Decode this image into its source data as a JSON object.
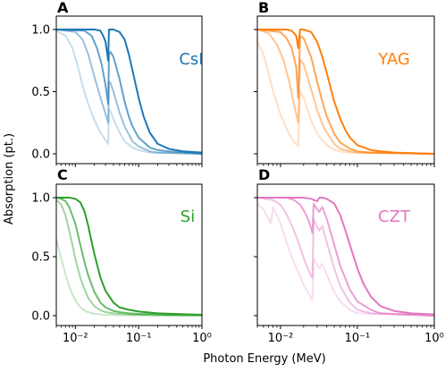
{
  "figure": {
    "ylabel": "Absorption (pt.)",
    "xlabel": "Photon Energy (MeV)"
  },
  "chart_data": [
    {
      "type": "line",
      "panel_letter": "A",
      "material": "CsI",
      "color": "#1f77b4",
      "x_scale": "log",
      "xlim": [
        0.005,
        1.0
      ],
      "ylim": [
        0.0,
        1.0
      ],
      "x_ticks": [
        "10⁻²",
        "10⁻¹",
        "10⁰"
      ],
      "y_ticks": [
        "0.0",
        "0.5",
        "1.0"
      ],
      "grid": false,
      "series": [
        {
          "opacity": 1.0,
          "x": [
            0.005,
            0.02,
            0.025,
            0.028,
            0.03,
            0.033,
            0.034,
            0.036,
            0.04,
            0.05,
            0.06,
            0.07,
            0.08,
            0.1,
            0.12,
            0.15,
            0.2,
            0.3,
            0.5,
            1.0
          ],
          "y": [
            1.0,
            1.0,
            0.99,
            0.94,
            0.9,
            0.75,
            1.0,
            1.0,
            1.0,
            0.98,
            0.92,
            0.8,
            0.67,
            0.45,
            0.3,
            0.17,
            0.08,
            0.04,
            0.02,
            0.01
          ]
        },
        {
          "opacity": 0.7,
          "x": [
            0.005,
            0.014,
            0.018,
            0.022,
            0.026,
            0.03,
            0.033,
            0.034,
            0.036,
            0.04,
            0.05,
            0.06,
            0.07,
            0.08,
            0.1,
            0.15,
            0.2,
            0.3,
            1.0
          ],
          "y": [
            1.0,
            0.99,
            0.95,
            0.85,
            0.72,
            0.55,
            0.4,
            0.8,
            0.82,
            0.78,
            0.6,
            0.42,
            0.3,
            0.22,
            0.13,
            0.05,
            0.03,
            0.02,
            0.0
          ]
        },
        {
          "opacity": 0.45,
          "x": [
            0.005,
            0.01,
            0.013,
            0.016,
            0.02,
            0.025,
            0.03,
            0.033,
            0.034,
            0.036,
            0.04,
            0.05,
            0.06,
            0.08,
            0.1,
            0.15,
            0.2,
            1.0
          ],
          "y": [
            1.0,
            0.98,
            0.92,
            0.8,
            0.62,
            0.45,
            0.32,
            0.25,
            0.58,
            0.57,
            0.5,
            0.33,
            0.22,
            0.1,
            0.06,
            0.02,
            0.01,
            0.0
          ]
        },
        {
          "opacity": 0.25,
          "x": [
            0.005,
            0.007,
            0.009,
            0.011,
            0.013,
            0.016,
            0.02,
            0.025,
            0.03,
            0.033,
            0.034,
            0.036,
            0.04,
            0.05,
            0.06,
            0.08,
            0.1,
            0.15,
            1.0
          ],
          "y": [
            0.99,
            0.95,
            0.85,
            0.7,
            0.55,
            0.4,
            0.27,
            0.17,
            0.11,
            0.08,
            0.36,
            0.34,
            0.28,
            0.17,
            0.1,
            0.05,
            0.03,
            0.01,
            0.0
          ]
        }
      ]
    },
    {
      "type": "line",
      "panel_letter": "B",
      "material": "YAG",
      "color": "#ff7f0e",
      "x_scale": "log",
      "xlim": [
        0.005,
        1.0
      ],
      "ylim": [
        0.0,
        1.0
      ],
      "x_ticks": [
        "10⁻²",
        "10⁻¹",
        "10⁰"
      ],
      "y_ticks": [
        "0.0",
        "0.5",
        "1.0"
      ],
      "grid": false,
      "series": [
        {
          "opacity": 1.0,
          "x": [
            0.005,
            0.012,
            0.014,
            0.016,
            0.017,
            0.018,
            0.02,
            0.025,
            0.03,
            0.035,
            0.04,
            0.05,
            0.06,
            0.07,
            0.08,
            0.1,
            0.15,
            0.2,
            0.3,
            1.0
          ],
          "y": [
            1.0,
            1.0,
            0.99,
            0.95,
            0.85,
            1.0,
            1.0,
            0.98,
            0.9,
            0.78,
            0.65,
            0.42,
            0.28,
            0.19,
            0.13,
            0.07,
            0.03,
            0.02,
            0.01,
            0.0
          ]
        },
        {
          "opacity": 0.7,
          "x": [
            0.005,
            0.01,
            0.012,
            0.014,
            0.016,
            0.017,
            0.018,
            0.02,
            0.025,
            0.03,
            0.035,
            0.04,
            0.05,
            0.06,
            0.08,
            0.1,
            0.15,
            1.0
          ],
          "y": [
            1.0,
            0.98,
            0.93,
            0.85,
            0.7,
            0.45,
            0.95,
            0.93,
            0.78,
            0.58,
            0.42,
            0.3,
            0.16,
            0.09,
            0.04,
            0.02,
            0.01,
            0.0
          ]
        },
        {
          "opacity": 0.45,
          "x": [
            0.005,
            0.007,
            0.009,
            0.011,
            0.013,
            0.015,
            0.017,
            0.018,
            0.02,
            0.025,
            0.03,
            0.035,
            0.04,
            0.05,
            0.06,
            0.08,
            0.1,
            1.0
          ],
          "y": [
            1.0,
            0.97,
            0.88,
            0.75,
            0.58,
            0.4,
            0.25,
            0.76,
            0.72,
            0.52,
            0.35,
            0.24,
            0.17,
            0.08,
            0.04,
            0.02,
            0.01,
            0.0
          ]
        },
        {
          "opacity": 0.25,
          "x": [
            0.005,
            0.006,
            0.007,
            0.008,
            0.01,
            0.012,
            0.014,
            0.017,
            0.018,
            0.02,
            0.025,
            0.03,
            0.04,
            0.05,
            0.06,
            0.08,
            1.0
          ],
          "y": [
            0.9,
            0.8,
            0.65,
            0.5,
            0.32,
            0.2,
            0.12,
            0.06,
            0.5,
            0.45,
            0.27,
            0.16,
            0.07,
            0.03,
            0.02,
            0.01,
            0.0
          ]
        }
      ]
    },
    {
      "type": "line",
      "panel_letter": "C",
      "material": "Si",
      "color": "#2ca02c",
      "x_scale": "log",
      "xlim": [
        0.005,
        1.0
      ],
      "ylim": [
        0.0,
        1.0
      ],
      "x_ticks": [
        "10⁻²",
        "10⁻¹",
        "10⁰"
      ],
      "y_ticks": [
        "0.0",
        "0.5",
        "1.0"
      ],
      "grid": false,
      "series": [
        {
          "opacity": 1.0,
          "x": [
            0.005,
            0.008,
            0.01,
            0.012,
            0.014,
            0.016,
            0.018,
            0.02,
            0.025,
            0.03,
            0.04,
            0.05,
            0.07,
            0.1,
            0.2,
            0.5,
            1.0
          ],
          "y": [
            1.0,
            1.0,
            0.99,
            0.96,
            0.88,
            0.76,
            0.63,
            0.52,
            0.32,
            0.21,
            0.11,
            0.07,
            0.05,
            0.035,
            0.02,
            0.012,
            0.008
          ]
        },
        {
          "opacity": 0.7,
          "x": [
            0.005,
            0.006,
            0.007,
            0.008,
            0.01,
            0.012,
            0.014,
            0.016,
            0.02,
            0.025,
            0.03,
            0.04,
            0.05,
            0.07,
            0.1,
            0.3,
            1.0
          ],
          "y": [
            1.0,
            0.99,
            0.97,
            0.92,
            0.78,
            0.6,
            0.45,
            0.34,
            0.2,
            0.11,
            0.07,
            0.04,
            0.03,
            0.02,
            0.015,
            0.008,
            0.005
          ]
        },
        {
          "opacity": 0.45,
          "x": [
            0.005,
            0.006,
            0.007,
            0.008,
            0.009,
            0.01,
            0.012,
            0.014,
            0.016,
            0.02,
            0.025,
            0.03,
            0.04,
            0.06,
            0.1,
            0.3,
            1.0
          ],
          "y": [
            0.98,
            0.94,
            0.85,
            0.72,
            0.6,
            0.48,
            0.32,
            0.22,
            0.15,
            0.08,
            0.045,
            0.03,
            0.02,
            0.012,
            0.008,
            0.004,
            0.003
          ]
        },
        {
          "opacity": 0.25,
          "x": [
            0.005,
            0.006,
            0.007,
            0.008,
            0.009,
            0.01,
            0.012,
            0.015,
            0.02,
            0.025,
            0.03,
            0.04,
            0.06,
            0.1,
            0.3,
            1.0
          ],
          "y": [
            0.65,
            0.48,
            0.35,
            0.25,
            0.18,
            0.13,
            0.07,
            0.035,
            0.015,
            0.01,
            0.007,
            0.005,
            0.003,
            0.002,
            0.001,
            0.001
          ]
        }
      ]
    },
    {
      "type": "line",
      "panel_letter": "D",
      "material": "CZT",
      "color": "#e377c2",
      "x_scale": "log",
      "xlim": [
        0.005,
        1.0
      ],
      "ylim": [
        0.0,
        1.0
      ],
      "x_ticks": [
        "10⁻²",
        "10⁻¹",
        "10⁰"
      ],
      "y_ticks": [
        "0.0",
        "0.5",
        "1.0"
      ],
      "grid": false,
      "series": [
        {
          "opacity": 1.0,
          "x": [
            0.005,
            0.02,
            0.025,
            0.027,
            0.03,
            0.032,
            0.035,
            0.04,
            0.05,
            0.06,
            0.07,
            0.08,
            0.1,
            0.12,
            0.15,
            0.2,
            0.3,
            0.5,
            1.0
          ],
          "y": [
            1.0,
            1.0,
            0.99,
            0.98,
            0.97,
            1.0,
            1.0,
            0.99,
            0.95,
            0.85,
            0.72,
            0.6,
            0.4,
            0.27,
            0.16,
            0.08,
            0.04,
            0.02,
            0.01
          ]
        },
        {
          "opacity": 0.7,
          "x": [
            0.005,
            0.012,
            0.015,
            0.018,
            0.021,
            0.024,
            0.026,
            0.027,
            0.03,
            0.032,
            0.035,
            0.04,
            0.05,
            0.06,
            0.08,
            0.1,
            0.15,
            0.2,
            1.0
          ],
          "y": [
            1.0,
            1.0,
            0.98,
            0.94,
            0.87,
            0.78,
            0.7,
            0.95,
            0.9,
            0.88,
            0.92,
            0.82,
            0.6,
            0.42,
            0.22,
            0.12,
            0.05,
            0.02,
            0.0
          ]
        },
        {
          "opacity": 0.45,
          "x": [
            0.005,
            0.008,
            0.01,
            0.012,
            0.015,
            0.018,
            0.021,
            0.024,
            0.026,
            0.027,
            0.03,
            0.032,
            0.035,
            0.04,
            0.05,
            0.06,
            0.08,
            0.1,
            0.15,
            1.0
          ],
          "y": [
            1.0,
            0.98,
            0.94,
            0.86,
            0.72,
            0.58,
            0.45,
            0.36,
            0.32,
            0.82,
            0.75,
            0.72,
            0.76,
            0.62,
            0.4,
            0.25,
            0.11,
            0.05,
            0.02,
            0.0
          ]
        },
        {
          "opacity": 0.25,
          "x": [
            0.005,
            0.006,
            0.007,
            0.0075,
            0.008,
            0.009,
            0.01,
            0.012,
            0.015,
            0.02,
            0.024,
            0.026,
            0.027,
            0.03,
            0.032,
            0.035,
            0.04,
            0.05,
            0.06,
            0.08,
            0.1,
            1.0
          ],
          "y": [
            0.95,
            0.9,
            0.82,
            0.78,
            0.92,
            0.85,
            0.78,
            0.62,
            0.45,
            0.26,
            0.17,
            0.13,
            0.48,
            0.43,
            0.4,
            0.44,
            0.35,
            0.2,
            0.12,
            0.05,
            0.02,
            0.0
          ]
        }
      ]
    }
  ]
}
